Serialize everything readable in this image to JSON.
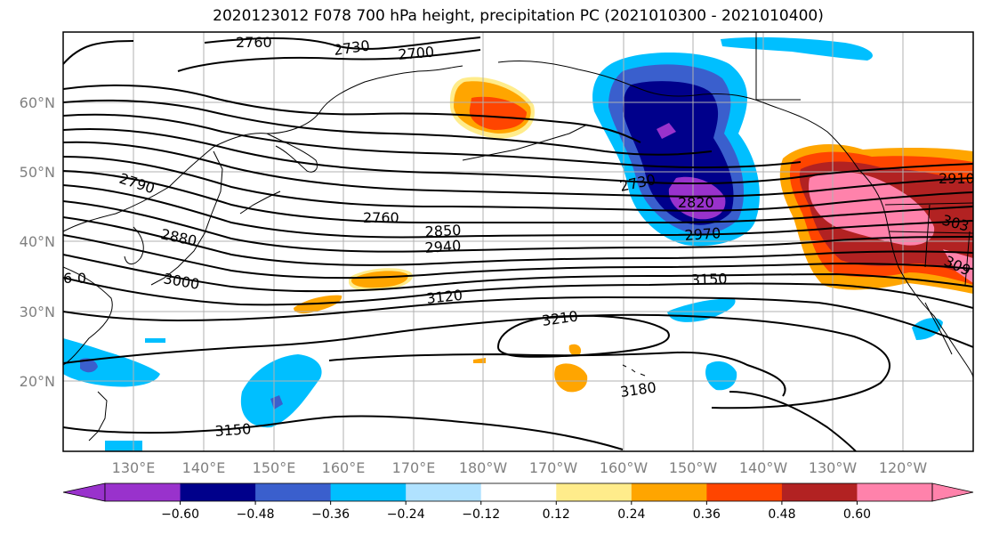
{
  "title": "2020123012 F078 700 hPa height, precipitation PC (2021010300 - 2021010400)",
  "map": {
    "lat_labels": [
      "60°N",
      "50°N",
      "40°N",
      "30°N",
      "20°N"
    ],
    "lon_labels": [
      "130°E",
      "140°E",
      "150°E",
      "160°E",
      "170°E",
      "180°W",
      "170°W",
      "160°W",
      "150°W",
      "140°W",
      "130°W",
      "120°W"
    ],
    "contour_labels": [
      {
        "text": "2760"
      },
      {
        "text": "2730"
      },
      {
        "text": "2700"
      },
      {
        "text": "2790"
      },
      {
        "text": "2880"
      },
      {
        "text": "3000"
      },
      {
        "text": "2760"
      },
      {
        "text": "2850"
      },
      {
        "text": "2940"
      },
      {
        "text": "3120"
      },
      {
        "text": "2730"
      },
      {
        "text": "2820"
      },
      {
        "text": "2970"
      },
      {
        "text": "3150"
      },
      {
        "text": "3210"
      },
      {
        "text": "3180"
      },
      {
        "text": "3150"
      },
      {
        "text": "2910"
      },
      {
        "text": "303"
      },
      {
        "text": "309"
      },
      {
        "text": "60"
      }
    ]
  },
  "colorbar": {
    "colors": [
      "#9932cc",
      "#00008b",
      "#3a5fcd",
      "#00bfff",
      "#b0e2ff",
      "#ffffff",
      "#ffec8b",
      "#ffa500",
      "#ff4500",
      "#b22222",
      "#ff82ab"
    ],
    "tick_labels": [
      "−0.60",
      "−0.48",
      "−0.36",
      "−0.24",
      "−0.12",
      "0.12",
      "0.24",
      "0.36",
      "0.48",
      "0.60"
    ]
  }
}
